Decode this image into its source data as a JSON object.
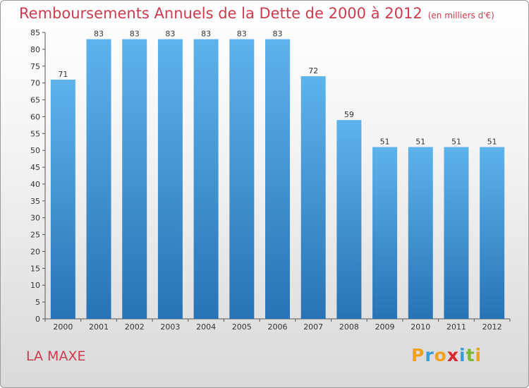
{
  "title": "Remboursements Annuels de la Dette de 2000 à 2012",
  "subtitle": "(en milliers d'€)",
  "location": "LA MAXE",
  "logo": {
    "letters": [
      "P",
      "r",
      "o",
      "x",
      "i",
      "t",
      "i"
    ],
    "colors": [
      "#f0a21f",
      "#3b9bd8",
      "#f0a21f",
      "#d9262e",
      "#3b9bd8",
      "#7cb82f",
      "#f0a21f"
    ]
  },
  "colors": {
    "bar_top": "#5eb3ec",
    "bar_bottom": "#2873b5",
    "title": "#cc3b4f"
  },
  "chart_data": {
    "type": "bar",
    "categories": [
      "2000",
      "2001",
      "2002",
      "2003",
      "2004",
      "2005",
      "2006",
      "2007",
      "2008",
      "2009",
      "2010",
      "2011",
      "2012"
    ],
    "values": [
      71,
      83,
      83,
      83,
      83,
      83,
      83,
      72,
      59,
      51,
      51,
      51,
      51
    ],
    "title": "Remboursements Annuels de la Dette de 2000 à 2012",
    "subtitle": "(en milliers d'€)",
    "xlabel": "",
    "ylabel": "",
    "ylim": [
      0,
      85
    ],
    "yticks": [
      0,
      5,
      10,
      15,
      20,
      25,
      30,
      35,
      40,
      45,
      50,
      55,
      60,
      65,
      70,
      75,
      80,
      85
    ],
    "grid": false,
    "legend": "none"
  }
}
